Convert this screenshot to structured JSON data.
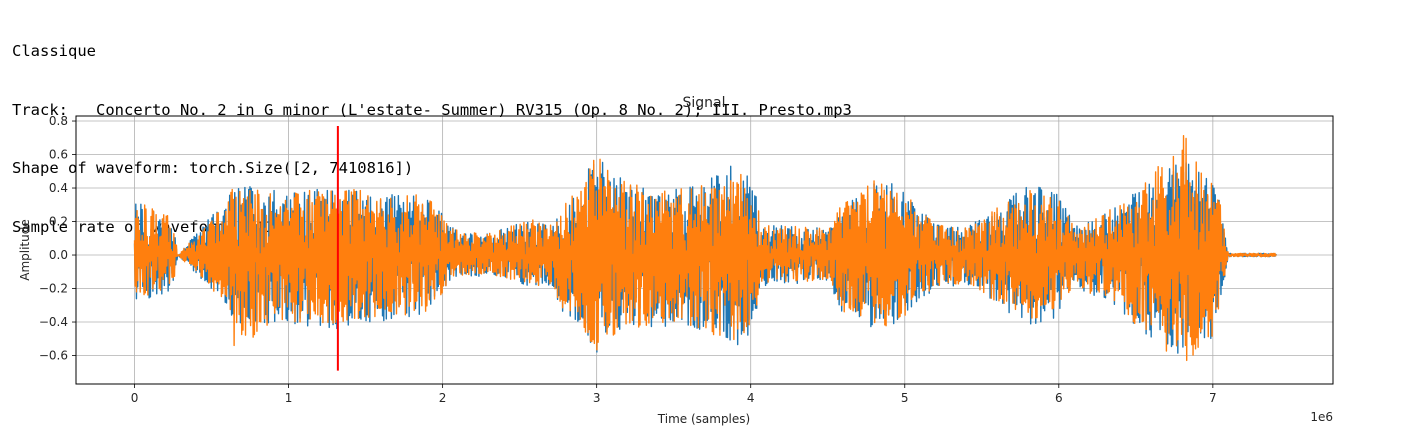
{
  "output": {
    "lines": [
      "Classique",
      "Track:   Concerto No. 2 in G minor (L'estate- Summer) RV315 (Op. 8 No. 2); III. Presto.mp3",
      "Shape of waveform: torch.Size([2, 7410816])",
      "Sample rate of waveform: 44100"
    ]
  },
  "colors": {
    "series1": "#1f77b4",
    "series2": "#ff7f0e",
    "marker": "#ff0000",
    "grid": "#b0b0b0"
  },
  "chart_data": {
    "type": "line",
    "title": "Signal",
    "xlabel": "Time (samples)",
    "ylabel": "Amplitude",
    "x_offset_text": "1e6",
    "xlim": [
      -380000,
      7780000
    ],
    "ylim": [
      -0.77,
      0.83
    ],
    "x_ticks": [
      0,
      1000000,
      2000000,
      3000000,
      4000000,
      5000000,
      6000000,
      7000000
    ],
    "x_tick_labels": [
      "0",
      "1",
      "2",
      "3",
      "4",
      "5",
      "6",
      "7"
    ],
    "y_ticks": [
      -0.6,
      -0.4,
      -0.2,
      0.0,
      0.2,
      0.4,
      0.6,
      0.8
    ],
    "y_tick_labels": [
      "−0.6",
      "−0.4",
      "−0.2",
      "0.0",
      "0.2",
      "0.4",
      "0.6",
      "0.8"
    ],
    "grid": true,
    "total_samples": 7410816,
    "marker_line": {
      "x": 1320000,
      "y": [
        -0.69,
        0.77
      ]
    },
    "envelope_x": [
      0,
      250000,
      280000,
      600000,
      650000,
      1000000,
      1320000,
      1700000,
      1900000,
      2100000,
      2300000,
      2600000,
      2700000,
      2800000,
      2950000,
      3000000,
      3100000,
      3400000,
      3700000,
      3950000,
      4100000,
      4500000,
      4600000,
      4800000,
      4950000,
      5100000,
      5200000,
      5400000,
      5800000,
      6000000,
      6100000,
      6400000,
      6500000,
      6800000,
      7000000,
      7050000,
      7100000,
      7410816
    ],
    "series": [
      {
        "upper": [
          0.33,
          0.22,
          0.0,
          0.34,
          0.42,
          0.38,
          0.4,
          0.36,
          0.35,
          0.14,
          0.13,
          0.22,
          0.18,
          0.3,
          0.52,
          0.65,
          0.48,
          0.38,
          0.44,
          0.58,
          0.18,
          0.16,
          0.3,
          0.46,
          0.42,
          0.28,
          0.18,
          0.16,
          0.42,
          0.38,
          0.18,
          0.3,
          0.38,
          0.58,
          0.44,
          0.3,
          0.01,
          0.01
        ],
        "lower": [
          -0.28,
          -0.22,
          0.0,
          -0.3,
          -0.42,
          -0.42,
          -0.45,
          -0.38,
          -0.35,
          -0.12,
          -0.13,
          -0.22,
          -0.18,
          -0.38,
          -0.52,
          -0.62,
          -0.48,
          -0.42,
          -0.48,
          -0.58,
          -0.18,
          -0.16,
          -0.36,
          -0.46,
          -0.42,
          -0.28,
          -0.2,
          -0.18,
          -0.42,
          -0.38,
          -0.2,
          -0.32,
          -0.44,
          -0.62,
          -0.5,
          -0.28,
          -0.01,
          -0.01
        ]
      },
      {
        "upper": [
          0.33,
          0.22,
          0.0,
          0.33,
          0.43,
          0.38,
          0.4,
          0.37,
          0.36,
          0.14,
          0.13,
          0.22,
          0.18,
          0.32,
          0.5,
          0.65,
          0.47,
          0.38,
          0.44,
          0.56,
          0.18,
          0.16,
          0.32,
          0.46,
          0.4,
          0.28,
          0.18,
          0.16,
          0.41,
          0.37,
          0.18,
          0.3,
          0.38,
          0.76,
          0.44,
          0.3,
          0.01,
          0.01
        ],
        "lower": [
          -0.26,
          -0.2,
          0.0,
          -0.3,
          -0.56,
          -0.4,
          -0.42,
          -0.37,
          -0.34,
          -0.12,
          -0.12,
          -0.2,
          -0.17,
          -0.36,
          -0.5,
          -0.58,
          -0.48,
          -0.4,
          -0.46,
          -0.56,
          -0.18,
          -0.15,
          -0.34,
          -0.44,
          -0.41,
          -0.27,
          -0.19,
          -0.17,
          -0.4,
          -0.36,
          -0.19,
          -0.3,
          -0.42,
          -0.68,
          -0.48,
          -0.27,
          -0.01,
          -0.01
        ]
      }
    ]
  }
}
